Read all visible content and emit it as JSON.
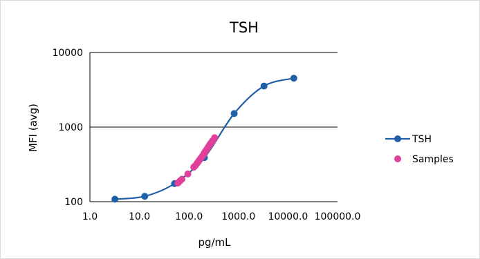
{
  "chart_data": {
    "type": "scatter",
    "title": "TSH",
    "xlabel": "pg/mL",
    "ylabel": "MFI (avg)",
    "x_scale": "log",
    "y_scale": "log",
    "xlim": [
      1,
      100000
    ],
    "ylim": [
      100,
      10000
    ],
    "x_tick_labels": [
      "1.0",
      "10.0",
      "100.0",
      "1000.0",
      "10000.0",
      "100000.0"
    ],
    "y_tick_labels": [
      "100",
      "1000",
      "10000"
    ],
    "x_ticks": [
      1,
      10,
      100,
      1000,
      10000,
      100000
    ],
    "y_ticks": [
      100,
      1000,
      10000
    ],
    "legend_position": "right",
    "gridlines": "horizontal",
    "series": [
      {
        "name": "TSH",
        "kind": "line+markers",
        "color": "#1f5fa8",
        "x": [
          3.2,
          12.8,
          51.2,
          204.8,
          819.2,
          3276.8,
          13107.2
        ],
        "y": [
          108,
          118,
          175,
          390,
          1520,
          3550,
          4520
        ]
      },
      {
        "name": "Samples",
        "kind": "markers",
        "color": "#e0409a",
        "x": [
          60,
          66,
          72,
          95,
          125,
          135,
          145,
          155,
          165,
          175,
          185,
          195,
          205,
          215,
          230,
          245,
          260,
          280,
          300,
          330
        ],
        "y": [
          178,
          190,
          200,
          235,
          290,
          305,
          325,
          345,
          365,
          385,
          405,
          425,
          450,
          475,
          505,
          540,
          575,
          615,
          655,
          720
        ]
      }
    ]
  }
}
